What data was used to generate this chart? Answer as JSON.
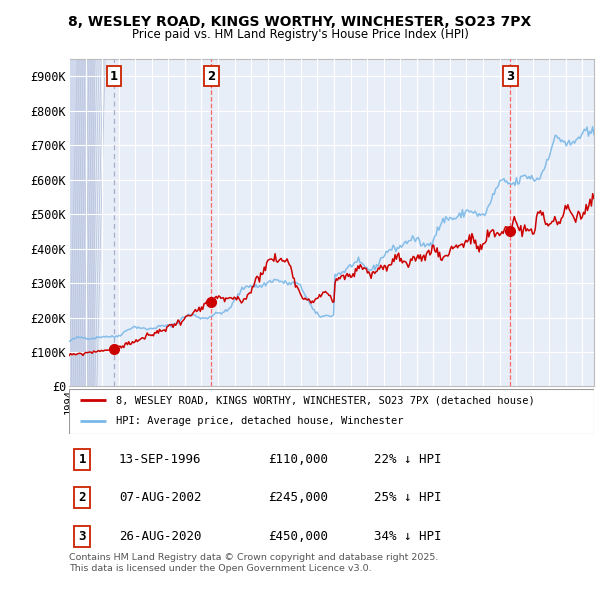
{
  "title_line1": "8, WESLEY ROAD, KINGS WORTHY, WINCHESTER, SO23 7PX",
  "title_line2": "Price paid vs. HM Land Registry's House Price Index (HPI)",
  "ylim": [
    0,
    950000
  ],
  "yticks": [
    0,
    100000,
    200000,
    300000,
    400000,
    500000,
    600000,
    700000,
    800000,
    900000
  ],
  "ytick_labels": [
    "£0",
    "£100K",
    "£200K",
    "£300K",
    "£400K",
    "£500K",
    "£600K",
    "£700K",
    "£800K",
    "£900K"
  ],
  "xmin": 1994.0,
  "xmax": 2025.7,
  "sale_dates": [
    1996.71,
    2002.6,
    2020.65
  ],
  "sale_prices": [
    110000,
    245000,
    450000
  ],
  "sale_labels": [
    "1",
    "2",
    "3"
  ],
  "legend_line1": "8, WESLEY ROAD, KINGS WORTHY, WINCHESTER, SO23 7PX (detached house)",
  "legend_line2": "HPI: Average price, detached house, Winchester",
  "table_entries": [
    {
      "num": "1",
      "date": "13-SEP-1996",
      "price": "£110,000",
      "hpi": "22% ↓ HPI"
    },
    {
      "num": "2",
      "date": "07-AUG-2002",
      "price": "£245,000",
      "hpi": "25% ↓ HPI"
    },
    {
      "num": "3",
      "date": "26-AUG-2020",
      "price": "£450,000",
      "hpi": "34% ↓ HPI"
    }
  ],
  "footer": "Contains HM Land Registry data © Crown copyright and database right 2025.\nThis data is licensed under the Open Government Licence v3.0.",
  "hpi_color": "#7ab8e8",
  "sale_line_color": "#cc0000",
  "vline1_color": "#aaaacc",
  "vline23_color": "#ff6666",
  "plot_bg_color": "#e8eef8",
  "grid_color": "#ffffff",
  "hatch_region_color": "#d0d8ee"
}
